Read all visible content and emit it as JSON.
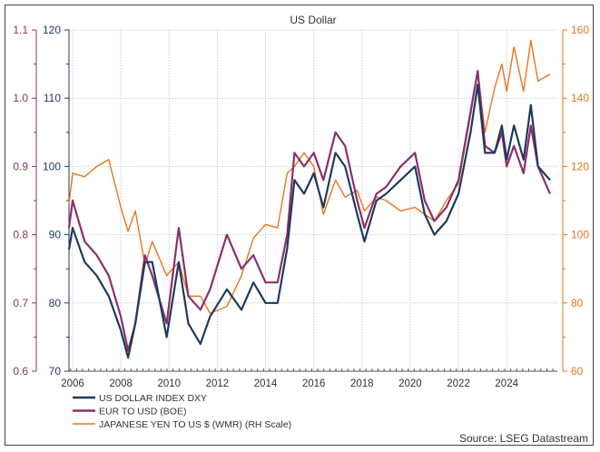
{
  "chart_data": {
    "type": "line",
    "title": "US Dollar",
    "source": "Source: LSEG Datastream",
    "xlim": [
      2005.85,
      2026.1
    ],
    "x_ticks": [
      "2006",
      "2008",
      "2010",
      "2012",
      "2014",
      "2016",
      "2018",
      "2020",
      "2022",
      "2024"
    ],
    "axes": {
      "left_outer": {
        "series": "EUR TO USD (BOE)",
        "ylim": [
          0.6,
          1.1
        ],
        "ticks": [
          "0.6",
          "0.7",
          "0.8",
          "0.9",
          "1.0",
          "1.1"
        ],
        "color": "#8b2f6b"
      },
      "left_inner": {
        "series": "US DOLLAR INDEX DXY",
        "ylim": [
          70,
          120
        ],
        "ticks": [
          "70",
          "80",
          "90",
          "100",
          "110",
          "120"
        ],
        "color": "#1f3a5f"
      },
      "right": {
        "series": "JAPANESE YEN TO US $ (WMR) (RH Scale)",
        "ylim": [
          60,
          160
        ],
        "ticks": [
          "60",
          "80",
          "100",
          "120",
          "140",
          "160"
        ],
        "color": "#e8761e"
      }
    },
    "grid": true,
    "legend_position": "bottom-left",
    "x": [
      2005.85,
      2006.0,
      2006.5,
      2007.0,
      2007.5,
      2008.0,
      2008.3,
      2008.6,
      2009.0,
      2009.3,
      2009.9,
      2010.4,
      2010.8,
      2011.3,
      2011.7,
      2012.4,
      2013.0,
      2013.5,
      2014.0,
      2014.5,
      2014.9,
      2015.2,
      2015.6,
      2016.0,
      2016.4,
      2016.9,
      2017.3,
      2017.8,
      2018.1,
      2018.6,
      2019.0,
      2019.6,
      2020.2,
      2020.6,
      2021.0,
      2021.5,
      2022.0,
      2022.5,
      2022.8,
      2023.1,
      2023.5,
      2023.8,
      2024.0,
      2024.3,
      2024.7,
      2025.0,
      2025.3,
      2025.8
    ],
    "series": [
      {
        "name": "US DOLLAR INDEX DXY",
        "axis": "left_inner",
        "color": "#1f3a5f",
        "width": 2.2,
        "values": [
          87.8,
          91,
          86,
          84,
          81,
          76,
          72,
          77,
          86,
          86,
          75,
          86,
          77,
          74,
          78,
          82,
          79,
          83,
          80,
          80,
          88,
          98,
          96,
          99,
          94,
          102,
          100,
          93,
          89,
          95,
          96,
          98,
          100,
          93,
          90,
          92,
          96,
          105,
          112,
          102,
          102,
          106,
          101,
          106,
          101,
          109,
          100,
          98
        ]
      },
      {
        "name": "EUR TO USD (BOE)",
        "axis": "left_outer",
        "color": "#8b2f6b",
        "width": 2.2,
        "values": [
          0.81,
          0.85,
          0.79,
          0.77,
          0.74,
          0.68,
          0.63,
          0.67,
          0.77,
          0.74,
          0.67,
          0.81,
          0.71,
          0.69,
          0.72,
          0.8,
          0.75,
          0.77,
          0.73,
          0.73,
          0.8,
          0.92,
          0.9,
          0.92,
          0.88,
          0.95,
          0.93,
          0.85,
          0.81,
          0.86,
          0.87,
          0.9,
          0.92,
          0.85,
          0.82,
          0.84,
          0.88,
          0.98,
          1.04,
          0.93,
          0.92,
          0.95,
          0.9,
          0.93,
          0.89,
          0.96,
          0.9,
          0.86
        ]
      },
      {
        "name": "JAPANESE YEN TO US $ (WMR) (RH Scale)",
        "axis": "right",
        "color": "#e8761e",
        "width": 1.4,
        "values": [
          109,
          118,
          117,
          120,
          122,
          108,
          101,
          107,
          91,
          98,
          88,
          92,
          82,
          82,
          77,
          79,
          88,
          99,
          103,
          102,
          118,
          120,
          124,
          120,
          106,
          116,
          111,
          113,
          107,
          111,
          110,
          107,
          108,
          106,
          104,
          110,
          115,
          135,
          148,
          130,
          143,
          150,
          142,
          155,
          142,
          157,
          145,
          147
        ]
      }
    ]
  }
}
